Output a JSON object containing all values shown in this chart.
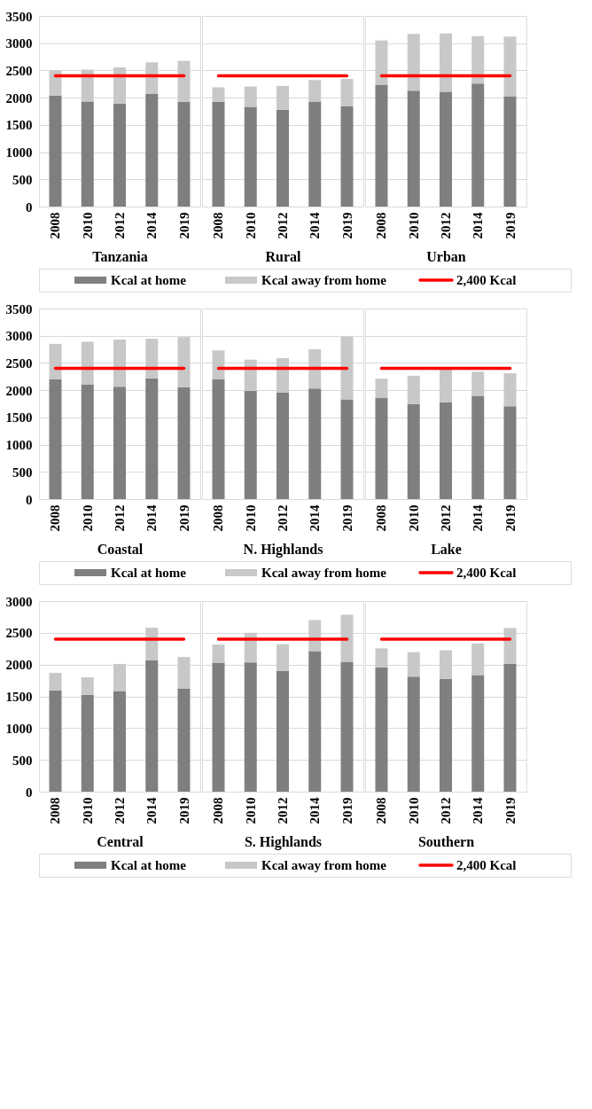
{
  "chart_data": [
    {
      "type": "bar",
      "xlabel": "Tanzania",
      "categories": [
        "2008",
        "2010",
        "2012",
        "2014",
        "2019"
      ],
      "stacked": true,
      "ylim": [
        0,
        3500
      ],
      "yticks": [
        0,
        500,
        1000,
        1500,
        2000,
        2500,
        3000,
        3500
      ],
      "grid": "y",
      "series": [
        {
          "color": "#7f7f7f",
          "values": [
            2040,
            1930,
            1890,
            2070,
            1920
          ]
        },
        {
          "color": "#c8c8c8",
          "values": [
            460,
            585,
            665,
            580,
            755
          ]
        }
      ],
      "ref_lines": [
        {
          "axis": "y",
          "value": 2400,
          "color": "#ff0000"
        }
      ]
    },
    {
      "type": "bar",
      "xlabel": "Rural",
      "categories": [
        "2008",
        "2010",
        "2012",
        "2014",
        "2019"
      ],
      "stacked": true,
      "ylim": [
        0,
        3500
      ],
      "yticks": [
        0,
        500,
        1000,
        1500,
        2000,
        2500,
        3000,
        3500
      ],
      "grid": "y",
      "legend": "bottom",
      "tick_labels": "x",
      "series": [
        {
          "name": "Kcal at home",
          "color": "#7f7f7f",
          "values": [
            1925,
            1830,
            1780,
            1930,
            1840
          ]
        },
        {
          "name": "Kcal away from home",
          "color": "#c8c8c8",
          "values": [
            265,
            375,
            435,
            395,
            505
          ]
        }
      ],
      "ref_lines": [
        {
          "axis": "y",
          "value": 2400,
          "label": "2,400 Kcal",
          "color": "#ff0000"
        }
      ]
    },
    {
      "type": "bar",
      "xlabel": "Urban",
      "categories": [
        "2008",
        "2010",
        "2012",
        "2014",
        "2019"
      ],
      "stacked": true,
      "ylim": [
        0,
        3500
      ],
      "yticks": [
        0,
        500,
        1000,
        1500,
        2000,
        2500,
        3000,
        3500
      ],
      "grid": "y",
      "tick_labels": "x",
      "series": [
        {
          "color": "#7f7f7f",
          "values": [
            2240,
            2130,
            2110,
            2260,
            2020
          ]
        },
        {
          "color": "#c8c8c8",
          "values": [
            810,
            1040,
            1070,
            870,
            1100
          ]
        }
      ],
      "ref_lines": [
        {
          "axis": "y",
          "value": 2400,
          "color": "#ff0000"
        }
      ]
    },
    {
      "type": "bar",
      "xlabel": "Coastal",
      "categories": [
        "2008",
        "2010",
        "2012",
        "2014",
        "2019"
      ],
      "stacked": true,
      "ylim": [
        0,
        3500
      ],
      "yticks": [
        0,
        500,
        1000,
        1500,
        2000,
        2500,
        3000,
        3500
      ],
      "grid": "y",
      "series": [
        {
          "color": "#7f7f7f",
          "values": [
            2200,
            2100,
            2065,
            2220,
            2050
          ]
        },
        {
          "color": "#c8c8c8",
          "values": [
            650,
            790,
            865,
            725,
            925
          ]
        }
      ],
      "ref_lines": [
        {
          "axis": "y",
          "value": 2400,
          "color": "#ff0000"
        }
      ]
    },
    {
      "type": "bar",
      "xlabel": "N. Highlands",
      "categories": [
        "2008",
        "2010",
        "2012",
        "2014",
        "2019"
      ],
      "stacked": true,
      "ylim": [
        0,
        3500
      ],
      "yticks": [
        0,
        500,
        1000,
        1500,
        2000,
        2500,
        3000,
        3500
      ],
      "grid": "y",
      "legend": "bottom",
      "tick_labels": "x",
      "series": [
        {
          "name": "Kcal at home",
          "color": "#7f7f7f",
          "values": [
            2205,
            1985,
            1955,
            2030,
            1830
          ]
        },
        {
          "name": "Kcal away from home",
          "color": "#c8c8c8",
          "values": [
            525,
            575,
            635,
            720,
            1155
          ]
        }
      ],
      "ref_lines": [
        {
          "axis": "y",
          "value": 2400,
          "label": "2,400 Kcal",
          "color": "#ff0000"
        }
      ]
    },
    {
      "type": "bar",
      "xlabel": "Lake",
      "categories": [
        "2008",
        "2010",
        "2012",
        "2014",
        "2019"
      ],
      "stacked": true,
      "ylim": [
        0,
        3500
      ],
      "yticks": [
        0,
        500,
        1000,
        1500,
        2000,
        2500,
        3000,
        3500
      ],
      "grid": "y",
      "tick_labels": "x",
      "series": [
        {
          "color": "#7f7f7f",
          "values": [
            1855,
            1745,
            1775,
            1895,
            1705
          ]
        },
        {
          "color": "#c8c8c8",
          "values": [
            355,
            520,
            615,
            445,
            605
          ]
        }
      ],
      "ref_lines": [
        {
          "axis": "y",
          "value": 2400,
          "color": "#ff0000"
        }
      ]
    },
    {
      "type": "bar",
      "xlabel": "Central",
      "categories": [
        "2008",
        "2010",
        "2012",
        "2014",
        "2019"
      ],
      "stacked": true,
      "ylim": [
        0,
        3000
      ],
      "yticks": [
        0,
        500,
        1000,
        1500,
        2000,
        2500,
        3000
      ],
      "grid": "y",
      "series": [
        {
          "color": "#7f7f7f",
          "values": [
            1595,
            1525,
            1585,
            2065,
            1625
          ]
        },
        {
          "color": "#c8c8c8",
          "values": [
            275,
            275,
            425,
            515,
            495
          ]
        }
      ],
      "ref_lines": [
        {
          "axis": "y",
          "value": 2400,
          "color": "#ff0000"
        }
      ]
    },
    {
      "type": "bar",
      "xlabel": "S. Highlands",
      "categories": [
        "2008",
        "2010",
        "2012",
        "2014",
        "2019"
      ],
      "stacked": true,
      "ylim": [
        0,
        3000
      ],
      "yticks": [
        0,
        500,
        1000,
        1500,
        2000,
        2500,
        3000
      ],
      "grid": "y",
      "legend": "bottom",
      "tick_labels": "x",
      "series": [
        {
          "name": "Kcal at home",
          "color": "#7f7f7f",
          "values": [
            2030,
            2035,
            1900,
            2210,
            2045
          ]
        },
        {
          "name": "Kcal away from home",
          "color": "#c8c8c8",
          "values": [
            285,
            465,
            420,
            490,
            740
          ]
        }
      ],
      "ref_lines": [
        {
          "axis": "y",
          "value": 2400,
          "label": "2,400 Kcal",
          "color": "#ff0000"
        }
      ]
    },
    {
      "type": "bar",
      "xlabel": "Southern",
      "categories": [
        "2008",
        "2010",
        "2012",
        "2014",
        "2019"
      ],
      "stacked": true,
      "ylim": [
        0,
        3000
      ],
      "yticks": [
        0,
        500,
        1000,
        1500,
        2000,
        2500,
        3000
      ],
      "grid": "y",
      "tick_labels": "x",
      "series": [
        {
          "color": "#7f7f7f",
          "values": [
            1955,
            1810,
            1775,
            1835,
            2010
          ]
        },
        {
          "color": "#c8c8c8",
          "values": [
            300,
            385,
            450,
            500,
            565
          ]
        }
      ],
      "ref_lines": [
        {
          "axis": "y",
          "value": 2400,
          "color": "#ff0000"
        }
      ]
    }
  ]
}
